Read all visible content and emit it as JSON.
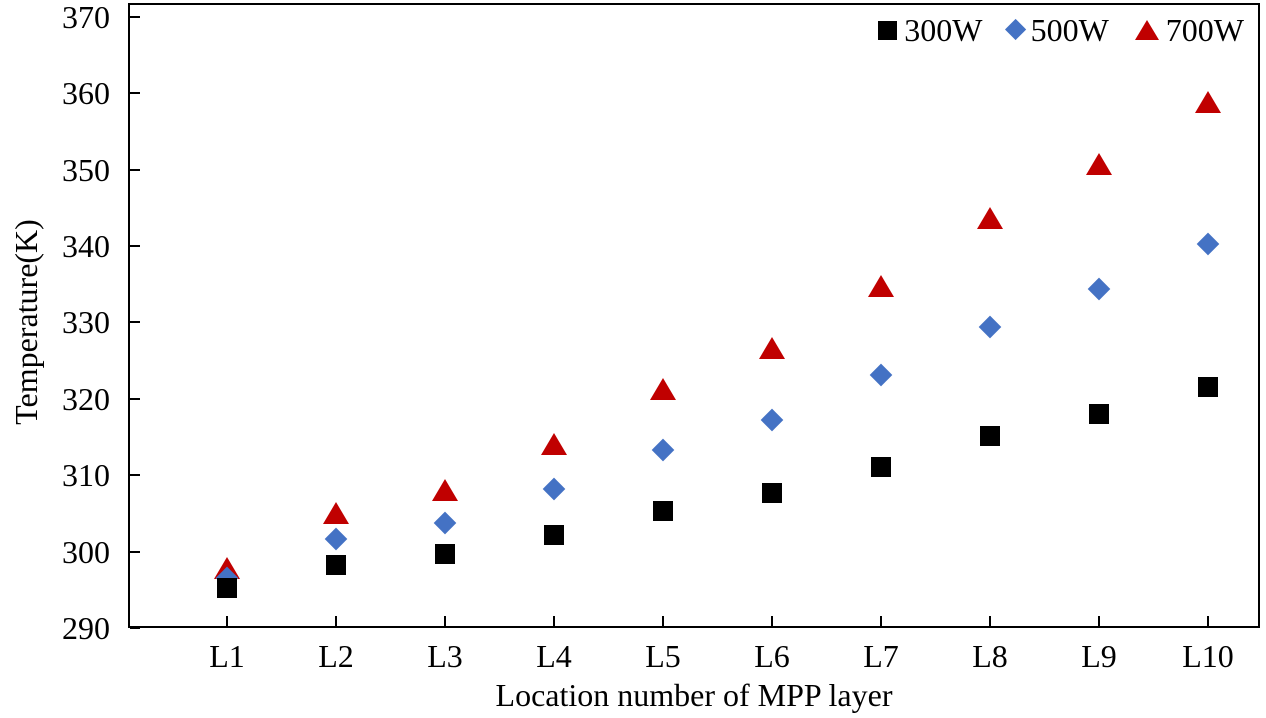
{
  "chart_data": {
    "type": "scatter",
    "title": "",
    "xlabel": "Location number of MPP layer",
    "ylabel": "Temperature(K)",
    "categories": [
      "L1",
      "L2",
      "L3",
      "L4",
      "L5",
      "L6",
      "L7",
      "L8",
      "L9",
      "L10"
    ],
    "ylim": [
      290,
      370
    ],
    "ytick_step": 10,
    "ytick_labels": [
      "290",
      "300",
      "310",
      "320",
      "330",
      "340",
      "350",
      "360",
      "370"
    ],
    "grid": false,
    "legend_position": "top-right-inside",
    "series": [
      {
        "name": "300W",
        "marker": "square",
        "color": "#000000",
        "values": [
          295.2,
          298.3,
          299.7,
          302.2,
          305.3,
          307.7,
          311.1,
          315.1,
          318.0,
          321.5
        ]
      },
      {
        "name": "500W",
        "marker": "diamond",
        "color": "#4472C4",
        "values": [
          296.5,
          301.7,
          303.8,
          308.2,
          313.3,
          317.2,
          323.1,
          329.4,
          334.4,
          340.2
        ]
      },
      {
        "name": "700W",
        "marker": "triangle",
        "color": "#C00000",
        "values": [
          297.9,
          305.1,
          308.0,
          314.1,
          321.3,
          326.7,
          334.7,
          343.6,
          350.7,
          358.8
        ]
      }
    ]
  },
  "colors": {
    "axis": "#000000",
    "text": "#000000",
    "background": "#ffffff"
  }
}
